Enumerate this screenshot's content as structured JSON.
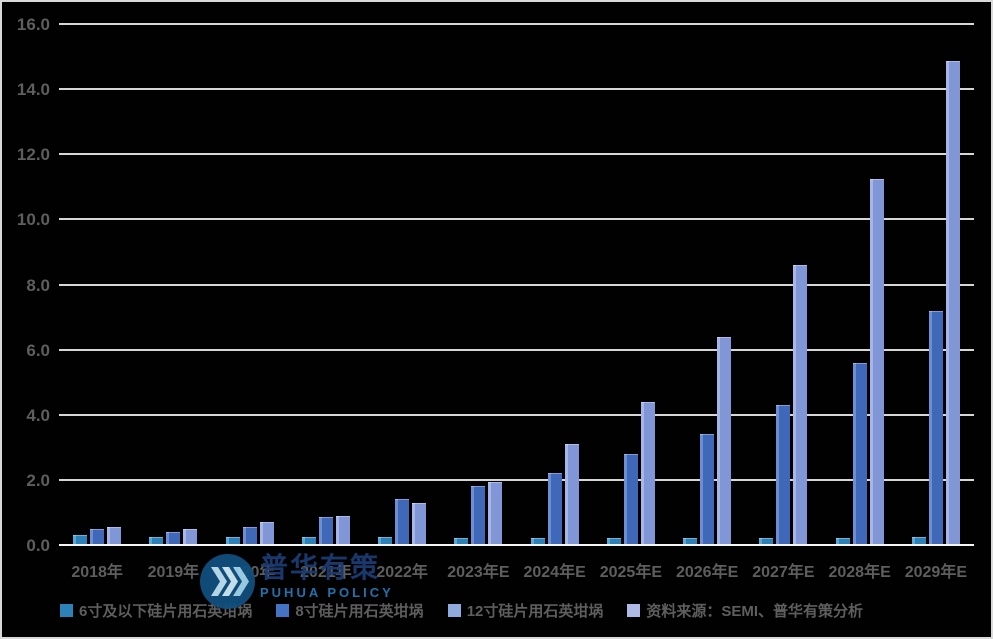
{
  "colors": {
    "background": "#010101",
    "frame_border": "#d9d9d9",
    "gridline": "#d6d6d6",
    "axis_line": "#f5f5f5",
    "label_gray": "#5e5e5e",
    "series_6inch": "#2c82b8",
    "series_6inch_highlight": "#55a9d4",
    "series_8inch": "#3f68b8",
    "series_8inch_highlight": "#6c8ed2",
    "series_12inch": "#8096d6",
    "series_12inch_highlight": "#a6b6e6",
    "source_marker": "#aeb9e6",
    "watermark_circle": "#11507e",
    "watermark_chevron": "#bce2f2",
    "watermark_cn_color": "#1b3b72",
    "watermark_en_color": "#2478b6"
  },
  "y_axis": {
    "max": 16,
    "min": 0,
    "step": 2,
    "tick_labels_top_down": [
      "16.0",
      "14.0",
      "12.0",
      "10.0",
      "8.0",
      "6.0",
      "4.0",
      "2.0",
      "0.0"
    ]
  },
  "legend": {
    "items": [
      {
        "label": "6寸及以下硅片用石英坩埚",
        "color": "#2c82b8"
      },
      {
        "label": "8寸硅片用石英坩埚",
        "color": "#4472c4"
      },
      {
        "label": "12寸硅片用石英坩埚",
        "color": "#8faadc"
      },
      {
        "label": "资料来源：SEMI、普华有策分析",
        "color": "#aeb9e6"
      }
    ]
  },
  "watermark": {
    "cn": "普华有策",
    "en": "PUHUA POLICY"
  },
  "chart_data": {
    "type": "bar",
    "title": "",
    "xlabel": "",
    "ylabel": "",
    "ylim": [
      0,
      16
    ],
    "ytick_step": 2,
    "grid": true,
    "legend_position": "bottom",
    "categories": [
      "2018年",
      "2019年",
      "2020年",
      "2021年",
      "2022年",
      "2023年E",
      "2024年E",
      "2025年E",
      "2026年E",
      "2027年E",
      "2028年E",
      "2029年E"
    ],
    "series": [
      {
        "name": "6寸及以下硅片用石英坩埚",
        "values": [
          0.3,
          0.25,
          0.25,
          0.25,
          0.25,
          0.2,
          0.2,
          0.2,
          0.2,
          0.2,
          0.2,
          0.25
        ]
      },
      {
        "name": "8寸硅片用石英坩埚",
        "values": [
          0.5,
          0.4,
          0.55,
          0.85,
          1.4,
          1.8,
          2.2,
          2.8,
          3.4,
          4.3,
          5.6,
          7.2
        ]
      },
      {
        "name": "12寸硅片用石英坩埚",
        "values": [
          0.55,
          0.5,
          0.7,
          0.9,
          1.3,
          1.95,
          3.1,
          4.4,
          6.4,
          8.6,
          11.25,
          14.85
        ]
      }
    ],
    "source_note": "资料来源：SEMI、普华有策分析"
  }
}
